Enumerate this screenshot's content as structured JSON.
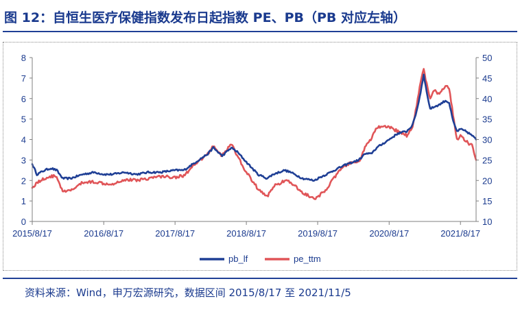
{
  "title": "图 12：自恒生医疗保健指数发布日起指数 PE、PB（PB 对应左轴）",
  "source": "资料来源：Wind，申万宏源研究，数据区间 2015/8/17 至 2021/11/5",
  "chart_data": {
    "type": "line",
    "x_ticks": [
      "2015/8/17",
      "2016/8/17",
      "2017/8/17",
      "2018/8/17",
      "2019/8/17",
      "2020/8/17",
      "2021/8/17"
    ],
    "x_range": [
      "2015/8/17",
      "2021/11/5"
    ],
    "y_left": {
      "range": [
        0,
        8
      ],
      "ticks": [
        0,
        1,
        2,
        3,
        4,
        5,
        6,
        7,
        8
      ]
    },
    "y_right": {
      "range": [
        10,
        50
      ],
      "ticks": [
        10,
        15,
        20,
        25,
        30,
        35,
        40,
        45,
        50
      ]
    },
    "legend_position": "bottom",
    "series": [
      {
        "name": "pb_lf",
        "axis": "left",
        "color": "#1f3f95",
        "points": [
          [
            "2015/8/17",
            2.8
          ],
          [
            "2015/9/10",
            2.3
          ],
          [
            "2015/10/20",
            2.5
          ],
          [
            "2015/11/20",
            2.6
          ],
          [
            "2015/12/20",
            2.5
          ],
          [
            "2016/1/20",
            2.1
          ],
          [
            "2016/3/1",
            2.1
          ],
          [
            "2016/5/1",
            2.3
          ],
          [
            "2016/7/1",
            2.4
          ],
          [
            "2016/8/17",
            2.3
          ],
          [
            "2016/10/1",
            2.3
          ],
          [
            "2016/12/1",
            2.4
          ],
          [
            "2017/2/1",
            2.3
          ],
          [
            "2017/4/1",
            2.4
          ],
          [
            "2017/6/1",
            2.4
          ],
          [
            "2017/8/17",
            2.5
          ],
          [
            "2017/10/1",
            2.5
          ],
          [
            "2017/12/1",
            2.9
          ],
          [
            "2018/2/1",
            3.3
          ],
          [
            "2018/3/1",
            3.6
          ],
          [
            "2018/4/15",
            3.2
          ],
          [
            "2018/6/1",
            3.6
          ],
          [
            "2018/7/1",
            3.4
          ],
          [
            "2018/8/17",
            2.9
          ],
          [
            "2018/10/15",
            2.3
          ],
          [
            "2018/12/1",
            2.1
          ],
          [
            "2019/1/1",
            2.3
          ],
          [
            "2019/3/1",
            2.5
          ],
          [
            "2019/4/1",
            2.4
          ],
          [
            "2019/6/1",
            2.1
          ],
          [
            "2019/8/1",
            2.0
          ],
          [
            "2019/8/17",
            2.1
          ],
          [
            "2019/10/1",
            2.3
          ],
          [
            "2019/12/1",
            2.6
          ],
          [
            "2020/1/15",
            2.8
          ],
          [
            "2020/3/15",
            3.0
          ],
          [
            "2020/4/15",
            3.3
          ],
          [
            "2020/5/15",
            3.3
          ],
          [
            "2020/6/15",
            3.6
          ],
          [
            "2020/8/17",
            4.0
          ],
          [
            "2020/10/1",
            4.3
          ],
          [
            "2020/11/15",
            4.4
          ],
          [
            "2020/12/15",
            4.7
          ],
          [
            "2021/1/5",
            5.4
          ],
          [
            "2021/1/25",
            6.3
          ],
          [
            "2021/2/10",
            7.2
          ],
          [
            "2021/2/25",
            6.3
          ],
          [
            "2021/3/15",
            5.5
          ],
          [
            "2021/4/5",
            5.6
          ],
          [
            "2021/5/1",
            5.7
          ],
          [
            "2021/6/1",
            5.9
          ],
          [
            "2021/6/20",
            5.8
          ],
          [
            "2021/7/10",
            4.9
          ],
          [
            "2021/7/30",
            4.4
          ],
          [
            "2021/8/17",
            4.5
          ],
          [
            "2021/9/15",
            4.4
          ],
          [
            "2021/10/15",
            4.2
          ],
          [
            "2021/11/5",
            4.0
          ]
        ]
      },
      {
        "name": "pe_ttm",
        "axis": "right",
        "color": "#e05558",
        "points": [
          [
            "2015/8/17",
            18.2
          ],
          [
            "2015/9/10",
            19.5
          ],
          [
            "2015/10/20",
            20.5
          ],
          [
            "2015/11/20",
            21.0
          ],
          [
            "2015/12/20",
            21.0
          ],
          [
            "2016/1/20",
            17.2
          ],
          [
            "2016/3/1",
            17.5
          ],
          [
            "2016/5/1",
            19.5
          ],
          [
            "2016/7/1",
            19.7
          ],
          [
            "2016/8/17",
            19.3
          ],
          [
            "2016/10/1",
            19.2
          ],
          [
            "2016/12/1",
            20.2
          ],
          [
            "2017/2/1",
            20.1
          ],
          [
            "2017/4/1",
            20.5
          ],
          [
            "2017/6/1",
            21.0
          ],
          [
            "2017/8/17",
            20.8
          ],
          [
            "2017/10/1",
            21.2
          ],
          [
            "2017/12/1",
            24.0
          ],
          [
            "2018/2/1",
            26.5
          ],
          [
            "2018/3/1",
            28.5
          ],
          [
            "2018/4/15",
            26.0
          ],
          [
            "2018/6/1",
            29.0
          ],
          [
            "2018/7/1",
            26.0
          ],
          [
            "2018/8/17",
            22.0
          ],
          [
            "2018/10/15",
            18.0
          ],
          [
            "2018/12/1",
            16.0
          ],
          [
            "2019/1/1",
            18.5
          ],
          [
            "2019/3/1",
            20.0
          ],
          [
            "2019/4/1",
            19.5
          ],
          [
            "2019/6/1",
            17.0
          ],
          [
            "2019/8/1",
            15.5
          ],
          [
            "2019/8/17",
            15.8
          ],
          [
            "2019/10/1",
            18.0
          ],
          [
            "2019/12/1",
            22.0
          ],
          [
            "2020/1/15",
            24.0
          ],
          [
            "2020/3/15",
            24.5
          ],
          [
            "2020/4/15",
            28.0
          ],
          [
            "2020/5/15",
            30.0
          ],
          [
            "2020/6/15",
            33.0
          ],
          [
            "2020/8/17",
            33.0
          ],
          [
            "2020/10/1",
            32.0
          ],
          [
            "2020/11/15",
            31.0
          ],
          [
            "2020/12/15",
            33.0
          ],
          [
            "2021/1/5",
            38.5
          ],
          [
            "2021/1/25",
            44.0
          ],
          [
            "2021/2/10",
            47.5
          ],
          [
            "2021/2/25",
            43.5
          ],
          [
            "2021/3/15",
            40.0
          ],
          [
            "2021/4/5",
            42.0
          ],
          [
            "2021/5/1",
            41.0
          ],
          [
            "2021/6/1",
            43.0
          ],
          [
            "2021/6/20",
            42.5
          ],
          [
            "2021/7/10",
            36.0
          ],
          [
            "2021/7/30",
            30.0
          ],
          [
            "2021/8/17",
            31.0
          ],
          [
            "2021/9/15",
            29.5
          ],
          [
            "2021/10/15",
            28.5
          ],
          [
            "2021/11/5",
            25.0
          ]
        ]
      }
    ]
  }
}
